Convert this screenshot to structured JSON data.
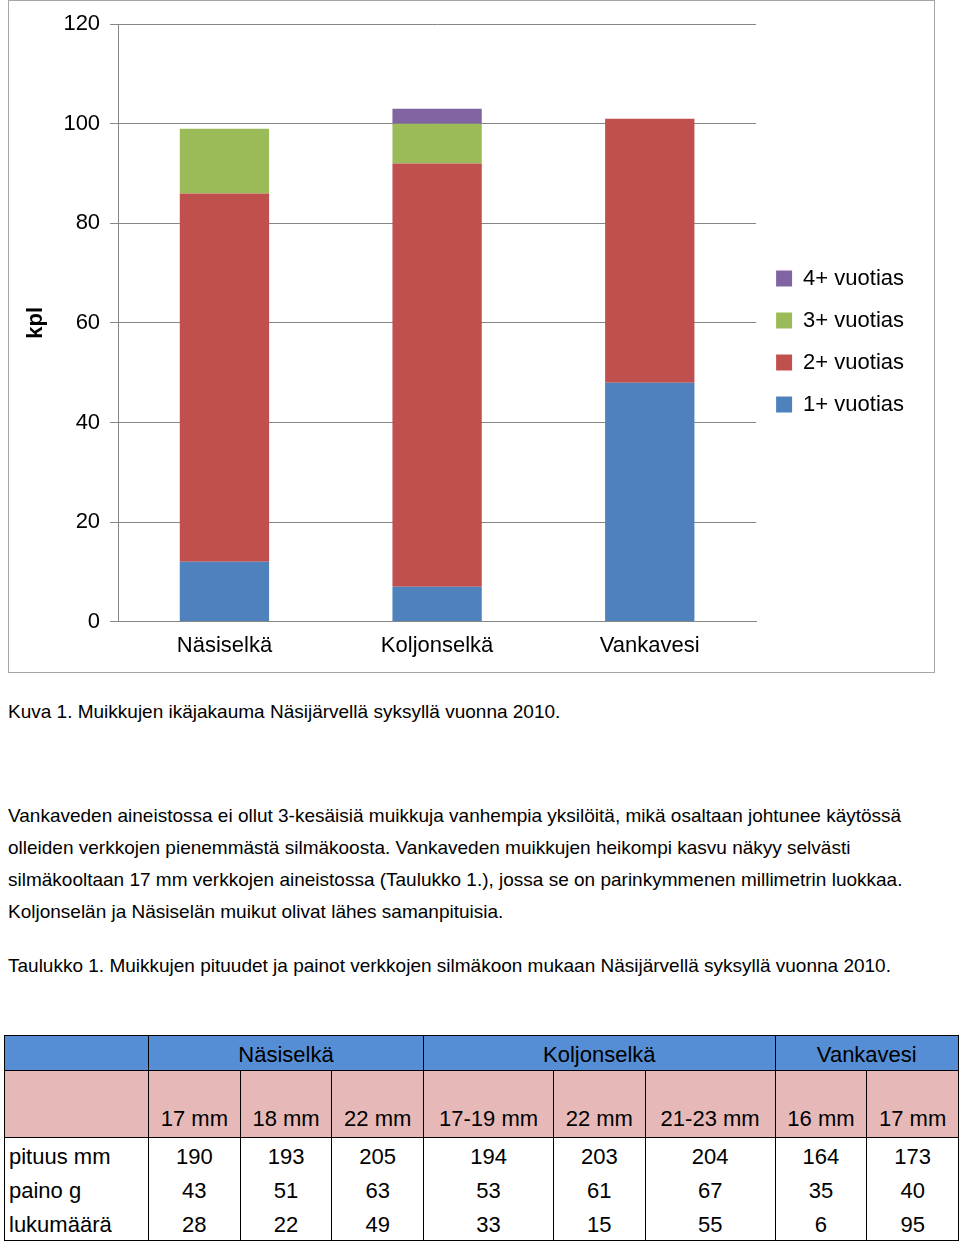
{
  "chart_data": {
    "type": "bar",
    "stacked": true,
    "y_label": "kpl",
    "categories": [
      "Näsiselkä",
      "Koljonselkä",
      "Vankavesi"
    ],
    "series": [
      {
        "name": "1+ vuotias",
        "color": "#4f81bd",
        "values": [
          12,
          7,
          48
        ]
      },
      {
        "name": "2+ vuotias",
        "color": "#c0504d",
        "values": [
          74,
          85,
          53
        ]
      },
      {
        "name": "3+ vuotias",
        "color": "#9bbb59",
        "values": [
          13,
          8,
          0
        ]
      },
      {
        "name": "4+ vuotias",
        "color": "#8064a2",
        "values": [
          0,
          3,
          0
        ]
      }
    ],
    "ylim": [
      0,
      120
    ],
    "yticks": [
      0,
      20,
      40,
      60,
      80,
      100,
      120
    ],
    "grid": true,
    "legend": "right"
  },
  "caption": "Kuva 1. Muikkujen ikäjakauma Näsijärvellä syksyllä vuonna 2010.",
  "paragraph": "Vankaveden aineistossa ei ollut 3-kesäisiä muikkuja vanhempia yksilöitä, mikä osaltaan johtunee käytössä olleiden verkkojen pienemmästä silmäkoosta. Vankaveden muikkujen heikompi kasvu näkyy selvästi silmäkooltaan 17 mm verkkojen aineistossa (Taulukko 1.), jossa se on parinkymmenen millimetrin luokkaa. Koljonselän ja Näsiselän muikut olivat lähes samanpituisia.",
  "table_caption": "Taulukko 1. Muikkujen pituudet ja painot verkkojen silmäkoon mukaan Näsijärvellä syksyllä vuonna 2010.",
  "table": {
    "groups": [
      {
        "name": "Näsiselkä",
        "columns": [
          "17 mm",
          "18 mm",
          "22 mm"
        ]
      },
      {
        "name": "Koljonselkä",
        "columns": [
          "17-19 mm",
          "22 mm",
          "21-23 mm"
        ]
      },
      {
        "name": "Vankavesi",
        "columns": [
          "16 mm",
          "17 mm"
        ]
      }
    ],
    "rows": [
      {
        "label": "pituus mm",
        "values": [
          190,
          193,
          205,
          194,
          203,
          204,
          164,
          173
        ]
      },
      {
        "label": "paino g",
        "values": [
          43,
          51,
          63,
          53,
          61,
          67,
          35,
          40
        ]
      },
      {
        "label": "lukumäärä",
        "values": [
          28,
          22,
          49,
          33,
          15,
          55,
          6,
          95
        ]
      }
    ]
  }
}
